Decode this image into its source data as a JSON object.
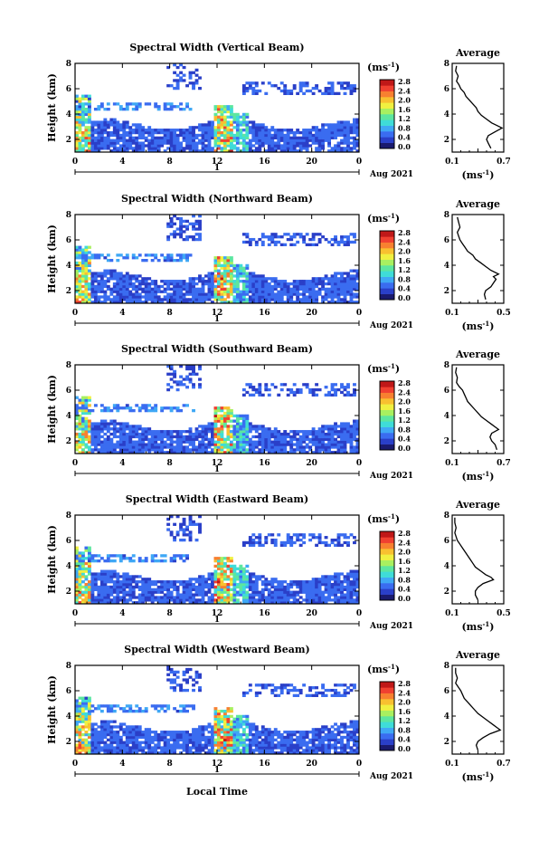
{
  "figure": {
    "xlabel": "Local Time",
    "date_label": "Aug 2021",
    "day_label": "1",
    "ylabel": "Height (km)",
    "unit_label": "(ms",
    "unit_sup": "-1",
    "avg_title": "Average",
    "colormap": [
      "#1a1a6e",
      "#2a3fc8",
      "#3a6cf0",
      "#3fa8f5",
      "#3fdcd8",
      "#5ce6a0",
      "#a8f060",
      "#f0f040",
      "#f8c030",
      "#f88030",
      "#f04030",
      "#c01818"
    ]
  },
  "chart_data": [
    {
      "type": "heatmap",
      "title": "Spectral Width (Vertical Beam)",
      "xlabel": "Local Time",
      "ylabel": "Height (km)",
      "xlim": [
        0,
        24
      ],
      "ylim": [
        1,
        8
      ],
      "xticks": [
        "0",
        "4",
        "8",
        "12",
        "16",
        "20",
        "0"
      ],
      "yticks": [
        "2",
        "4",
        "6",
        "8"
      ],
      "colorbar_ticks": [
        "2.8",
        "2.4",
        "2.0",
        "1.6",
        "1.2",
        "0.8",
        "0.4",
        "0.0"
      ],
      "colorbar_range": [
        0.0,
        2.8
      ],
      "average": {
        "title": "Average",
        "xlabel": "(ms",
        "xlabel_sup": "-1",
        "xticks": [
          "0.1",
          "0.7"
        ],
        "xlim": [
          0.1,
          0.7
        ],
        "yticks": [
          "2",
          "4",
          "6",
          "8"
        ],
        "ylim": [
          1,
          8
        ],
        "heights": [
          1.3,
          1.7,
          2.0,
          2.3,
          2.6,
          2.9,
          3.1,
          3.3,
          3.6,
          3.9,
          4.2,
          4.5,
          4.8,
          5.1,
          5.4,
          5.7,
          6.0,
          6.3,
          6.6,
          7.0,
          7.4,
          7.8
        ],
        "values": [
          0.55,
          0.52,
          0.5,
          0.52,
          0.6,
          0.68,
          0.62,
          0.56,
          0.5,
          0.44,
          0.4,
          0.38,
          0.34,
          0.3,
          0.26,
          0.24,
          0.2,
          0.18,
          0.15,
          0.17,
          0.14,
          0.15
        ]
      }
    },
    {
      "type": "heatmap",
      "title": "Spectral Width (Northward Beam)",
      "xlabel": "Local Time",
      "ylabel": "Height (km)",
      "xlim": [
        0,
        24
      ],
      "ylim": [
        1,
        8
      ],
      "xticks": [
        "0",
        "4",
        "8",
        "12",
        "16",
        "20",
        "0"
      ],
      "yticks": [
        "2",
        "4",
        "6",
        "8"
      ],
      "colorbar_ticks": [
        "2.8",
        "2.4",
        "2.0",
        "1.6",
        "1.2",
        "0.8",
        "0.4",
        "0.0"
      ],
      "colorbar_range": [
        0.0,
        2.8
      ],
      "average": {
        "title": "Average",
        "xlabel": "(ms",
        "xlabel_sup": "-1",
        "xticks": [
          "0.1",
          "0.5"
        ],
        "xlim": [
          0.1,
          0.5
        ],
        "yticks": [
          "2",
          "4",
          "6",
          "8"
        ],
        "ylim": [
          1,
          8
        ],
        "heights": [
          1.3,
          1.7,
          2.0,
          2.3,
          2.6,
          2.9,
          3.1,
          3.3,
          3.6,
          3.9,
          4.2,
          4.5,
          4.8,
          5.1,
          5.4,
          5.7,
          6.0,
          6.3,
          6.6,
          7.0,
          7.4,
          7.8
        ],
        "values": [
          0.36,
          0.35,
          0.36,
          0.4,
          0.42,
          0.44,
          0.42,
          0.46,
          0.4,
          0.36,
          0.32,
          0.28,
          0.26,
          0.22,
          0.2,
          0.18,
          0.16,
          0.15,
          0.14,
          0.16,
          0.15,
          0.14
        ]
      }
    },
    {
      "type": "heatmap",
      "title": "Spectral Width (Southward Beam)",
      "xlabel": "Local Time",
      "ylabel": "Height (km)",
      "xlim": [
        0,
        24
      ],
      "ylim": [
        1,
        8
      ],
      "xticks": [
        "0",
        "4",
        "8",
        "12",
        "16",
        "20",
        "0"
      ],
      "yticks": [
        "2",
        "4",
        "6",
        "8"
      ],
      "colorbar_ticks": [
        "2.8",
        "2.4",
        "2.0",
        "1.6",
        "1.2",
        "0.8",
        "0.4",
        "0.0"
      ],
      "colorbar_range": [
        0.0,
        2.8
      ],
      "average": {
        "title": "Average",
        "xlabel": "(ms",
        "xlabel_sup": "-1",
        "xticks": [
          "0.1",
          "0.7"
        ],
        "xlim": [
          0.1,
          0.7
        ],
        "yticks": [
          "2",
          "4",
          "6",
          "8"
        ],
        "ylim": [
          1,
          8
        ],
        "heights": [
          1.3,
          1.7,
          2.0,
          2.3,
          2.6,
          2.9,
          3.1,
          3.3,
          3.6,
          3.9,
          4.2,
          4.5,
          4.8,
          5.1,
          5.4,
          5.7,
          6.0,
          6.3,
          6.6,
          7.0,
          7.4,
          7.8
        ],
        "values": [
          0.62,
          0.6,
          0.56,
          0.54,
          0.56,
          0.64,
          0.6,
          0.56,
          0.5,
          0.44,
          0.4,
          0.36,
          0.32,
          0.28,
          0.26,
          0.24,
          0.22,
          0.18,
          0.15,
          0.16,
          0.14,
          0.15
        ]
      }
    },
    {
      "type": "heatmap",
      "title": "Spectral Width (Eastward Beam)",
      "xlabel": "Local Time",
      "ylabel": "Height (km)",
      "xlim": [
        0,
        24
      ],
      "ylim": [
        1,
        8
      ],
      "xticks": [
        "0",
        "4",
        "8",
        "12",
        "16",
        "20",
        "0"
      ],
      "yticks": [
        "2",
        "4",
        "6",
        "8"
      ],
      "colorbar_ticks": [
        "2.8",
        "2.4",
        "2.0",
        "1.6",
        "1.2",
        "0.8",
        "0.4",
        "0.0"
      ],
      "colorbar_range": [
        0.0,
        2.8
      ],
      "average": {
        "title": "Average",
        "xlabel": "(ms",
        "xlabel_sup": "-1",
        "xticks": [
          "0.1",
          "0.5"
        ],
        "xlim": [
          0.1,
          0.5
        ],
        "yticks": [
          "2",
          "4",
          "6",
          "8"
        ],
        "ylim": [
          1,
          8
        ],
        "heights": [
          1.3,
          1.7,
          2.0,
          2.3,
          2.6,
          2.9,
          3.1,
          3.3,
          3.6,
          3.9,
          4.2,
          4.5,
          4.8,
          5.1,
          5.4,
          5.7,
          6.0,
          6.3,
          6.6,
          7.0,
          7.4,
          7.8
        ],
        "values": [
          0.3,
          0.28,
          0.28,
          0.3,
          0.34,
          0.42,
          0.4,
          0.36,
          0.32,
          0.28,
          0.26,
          0.24,
          0.22,
          0.2,
          0.18,
          0.16,
          0.14,
          0.13,
          0.12,
          0.13,
          0.12,
          0.12
        ]
      }
    },
    {
      "type": "heatmap",
      "title": "Spectral Width (Westward Beam)",
      "xlabel": "Local Time",
      "ylabel": "Height (km)",
      "xlim": [
        0,
        24
      ],
      "ylim": [
        1,
        8
      ],
      "xticks": [
        "0",
        "4",
        "8",
        "12",
        "16",
        "20",
        "0"
      ],
      "yticks": [
        "2",
        "4",
        "6",
        "8"
      ],
      "colorbar_ticks": [
        "2.8",
        "2.4",
        "2.0",
        "1.6",
        "1.2",
        "0.8",
        "0.4",
        "0.0"
      ],
      "colorbar_range": [
        0.0,
        2.8
      ],
      "average": {
        "title": "Average",
        "xlabel": "(ms",
        "xlabel_sup": "-1",
        "xticks": [
          "0.1",
          "0.7"
        ],
        "xlim": [
          0.1,
          0.7
        ],
        "yticks": [
          "2",
          "4",
          "6",
          "8"
        ],
        "ylim": [
          1,
          8
        ],
        "heights": [
          1.3,
          1.7,
          2.0,
          2.3,
          2.6,
          2.9,
          3.1,
          3.3,
          3.6,
          3.9,
          4.2,
          4.5,
          4.8,
          5.1,
          5.4,
          5.7,
          6.0,
          6.3,
          6.6,
          7.0,
          7.4,
          7.8
        ],
        "values": [
          0.4,
          0.38,
          0.4,
          0.46,
          0.54,
          0.66,
          0.62,
          0.58,
          0.52,
          0.46,
          0.4,
          0.36,
          0.32,
          0.28,
          0.24,
          0.22,
          0.2,
          0.17,
          0.14,
          0.16,
          0.14,
          0.14
        ]
      }
    }
  ]
}
